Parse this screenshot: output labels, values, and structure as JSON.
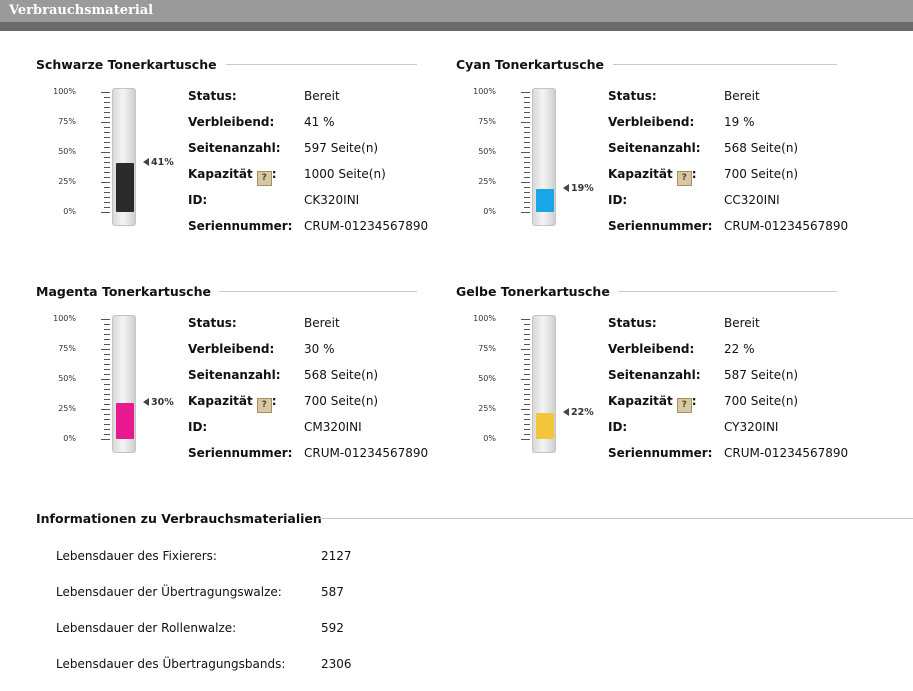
{
  "header": {
    "title": "Verbrauchsmaterial"
  },
  "scale_labels": [
    "100%",
    "75%",
    "50%",
    "25%",
    "0%"
  ],
  "labels": {
    "status": "Status:",
    "remaining": "Verbleibend:",
    "page_count": "Seitenanzahl:",
    "capacity": "Kapazität",
    "id": "ID:",
    "serial": "Seriennummer:",
    "help_glyph": "?"
  },
  "cartridges": [
    {
      "title": "Schwarze Tonerkartusche",
      "percent": 41,
      "percent_label": "41%",
      "color": "#2b2b2b",
      "status": "Bereit",
      "remaining": "41 %",
      "page_count": "597 Seite(n)",
      "capacity": "1000 Seite(n)",
      "id": "CK320INI",
      "serial": "CRUM-01234567890"
    },
    {
      "title": "Cyan Tonerkartusche",
      "percent": 19,
      "percent_label": "19%",
      "color": "#1aa6e6",
      "status": "Bereit",
      "remaining": "19 %",
      "page_count": "568 Seite(n)",
      "capacity": "700 Seite(n)",
      "id": "CC320INI",
      "serial": "CRUM-01234567890"
    },
    {
      "title": "Magenta Tonerkartusche",
      "percent": 30,
      "percent_label": "30%",
      "color": "#e8198f",
      "status": "Bereit",
      "remaining": "30 %",
      "page_count": "568 Seite(n)",
      "capacity": "700 Seite(n)",
      "id": "CM320INI",
      "serial": "CRUM-01234567890"
    },
    {
      "title": "Gelbe Tonerkartusche",
      "percent": 22,
      "percent_label": "22%",
      "color": "#f3c53a",
      "status": "Bereit",
      "remaining": "22 %",
      "page_count": "587 Seite(n)",
      "capacity": "700 Seite(n)",
      "id": "CY320INI",
      "serial": "CRUM-01234567890"
    }
  ],
  "supplies": {
    "title": "Informationen zu Verbrauchsmaterialien",
    "items": [
      {
        "label": "Lebensdauer des Fixierers:",
        "value": "2127"
      },
      {
        "label": "Lebensdauer der Übertragungswalze:",
        "value": "587"
      },
      {
        "label": "Lebensdauer der Rollenwalze:",
        "value": "592"
      },
      {
        "label": "Lebensdauer des Übertragungsbands:",
        "value": "2306"
      }
    ]
  }
}
